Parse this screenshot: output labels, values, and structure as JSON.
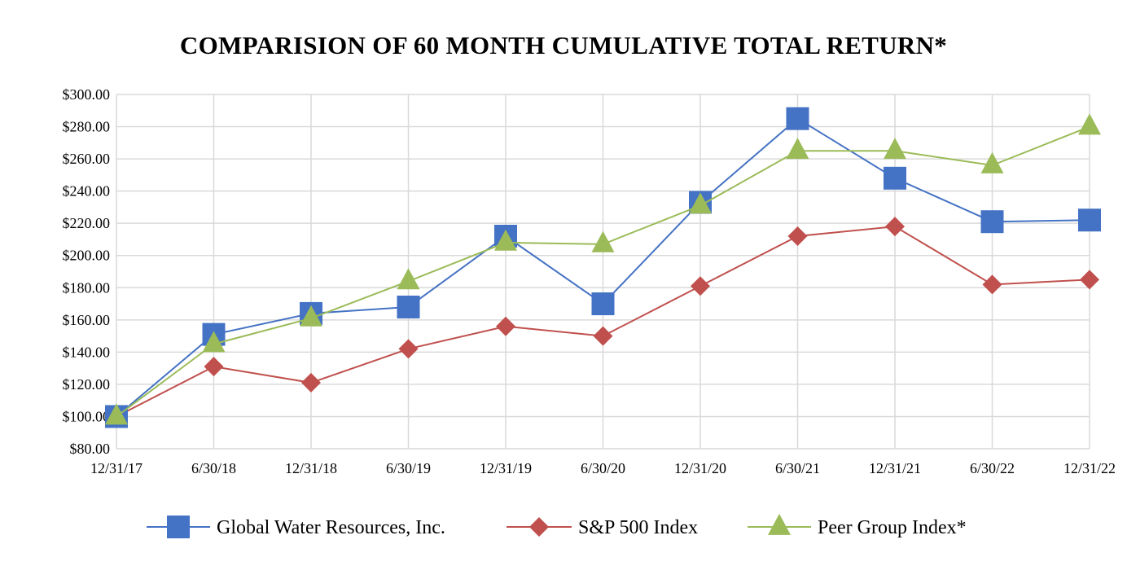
{
  "chart_data": {
    "type": "line",
    "title": "COMPARISION OF 60 MONTH CUMULATIVE TOTAL RETURN*",
    "xlabel": "",
    "ylabel": "",
    "categories": [
      "12/31/17",
      "6/30/18",
      "12/31/18",
      "6/30/19",
      "12/31/19",
      "6/30/20",
      "12/31/20",
      "6/30/21",
      "12/31/21",
      "6/30/22",
      "12/31/22"
    ],
    "ylim": [
      80,
      300
    ],
    "ytick_step": 20,
    "ytick_labels": [
      "$80.00",
      "$100.00",
      "$120.00",
      "$140.00",
      "$160.00",
      "$180.00",
      "$200.00",
      "$220.00",
      "$240.00",
      "$260.00",
      "$280.00",
      "$300.00"
    ],
    "grid": true,
    "legend_position": "bottom",
    "series": [
      {
        "name": "Global Water Resources, Inc.",
        "marker": "square",
        "color": "#4472C4",
        "values": [
          100,
          151,
          164,
          168,
          212,
          170,
          233,
          285,
          248,
          221,
          222
        ]
      },
      {
        "name": "S&P 500 Index",
        "marker": "diamond",
        "color": "#C0504D",
        "values": [
          100,
          131,
          121,
          142,
          156,
          150,
          181,
          212,
          218,
          182,
          185
        ]
      },
      {
        "name": "Peer Group Index*",
        "marker": "triangle",
        "color": "#9BBB59",
        "values": [
          100,
          145,
          161,
          184,
          208,
          207,
          231,
          265,
          265,
          256,
          280
        ]
      }
    ]
  }
}
